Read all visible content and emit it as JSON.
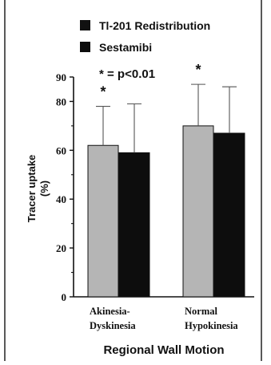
{
  "chart_data": {
    "type": "bar",
    "title": "",
    "xlabel": "Regional Wall Motion",
    "ylabel": "Tracer uptake",
    "ylabel_unit": "(%)",
    "ylim": [
      0,
      90
    ],
    "yticks": [
      0,
      20,
      40,
      60,
      80,
      90
    ],
    "categories": [
      [
        "Akinesia-",
        "Dyskinesia"
      ],
      [
        "Normal",
        "Hypokinesia"
      ]
    ],
    "series": [
      {
        "name": "Tl-201 Redistribution",
        "color": "#b5b5b5",
        "values": [
          62,
          70
        ],
        "error_upper": [
          78,
          87
        ]
      },
      {
        "name": "Sestamibi",
        "color": "#0d0d0d",
        "values": [
          59,
          67
        ],
        "error_upper": [
          79,
          86
        ]
      }
    ],
    "legend_position": "top",
    "significance_note": "* = p<0.01",
    "significance_marker": "*",
    "significance_on_category": [
      0,
      1
    ],
    "grid": false
  },
  "colors": {
    "axis": "#111111",
    "frame": "#222222"
  }
}
